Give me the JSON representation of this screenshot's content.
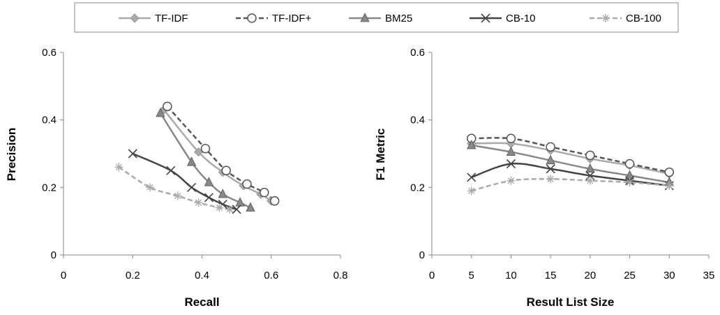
{
  "legend": {
    "entries": [
      "TF-IDF",
      "TF-IDF+",
      "BM25",
      "CB-10",
      "CB-100"
    ],
    "placement": "top"
  },
  "series_style": [
    {
      "name": "TF-IDF",
      "color": "#aaaaaa",
      "dash": "solid",
      "marker": "diamond"
    },
    {
      "name": "TF-IDF+",
      "color": "#555555",
      "dash": "dashed",
      "marker": "open-circle"
    },
    {
      "name": "BM25",
      "color": "#888888",
      "dash": "solid",
      "marker": "triangle"
    },
    {
      "name": "CB-10",
      "color": "#444444",
      "dash": "solid",
      "marker": "x"
    },
    {
      "name": "CB-100",
      "color": "#aaaaaa",
      "dash": "dashed",
      "marker": "asterisk"
    }
  ],
  "chart_data": [
    {
      "type": "line",
      "title": "",
      "xlabel": "Recall",
      "ylabel": "Precision",
      "xlim": [
        0,
        0.8
      ],
      "ylim": [
        0,
        0.6
      ],
      "xticks": [
        "0",
        "0.2",
        "0.4",
        "0.6",
        "0.8"
      ],
      "yticks": [
        "0",
        "0.2",
        "0.4",
        "0.6"
      ],
      "grid": false,
      "series": [
        {
          "name": "TF-IDF",
          "x": [
            0.29,
            0.39,
            0.46,
            0.52,
            0.57,
            0.6
          ],
          "y": [
            0.43,
            0.305,
            0.245,
            0.205,
            0.18,
            0.16
          ]
        },
        {
          "name": "TF-IDF+",
          "x": [
            0.3,
            0.41,
            0.47,
            0.53,
            0.58,
            0.61
          ],
          "y": [
            0.44,
            0.315,
            0.25,
            0.21,
            0.185,
            0.16
          ]
        },
        {
          "name": "BM25",
          "x": [
            0.28,
            0.37,
            0.42,
            0.46,
            0.51,
            0.54
          ],
          "y": [
            0.42,
            0.275,
            0.215,
            0.18,
            0.155,
            0.14
          ]
        },
        {
          "name": "CB-10",
          "x": [
            0.2,
            0.31,
            0.37,
            0.42,
            0.46,
            0.5
          ],
          "y": [
            0.3,
            0.25,
            0.2,
            0.17,
            0.15,
            0.135
          ]
        },
        {
          "name": "CB-100",
          "x": [
            0.16,
            0.25,
            0.33,
            0.39,
            0.45,
            0.48
          ],
          "y": [
            0.26,
            0.2,
            0.175,
            0.155,
            0.14,
            0.135
          ]
        }
      ]
    },
    {
      "type": "line",
      "title": "",
      "xlabel": "Result List Size",
      "ylabel": "F1 Metric",
      "xlim": [
        0,
        35
      ],
      "ylim": [
        0,
        0.6
      ],
      "xticks": [
        "0",
        "5",
        "10",
        "15",
        "20",
        "25",
        "30",
        "35"
      ],
      "yticks": [
        "0",
        "0.2",
        "0.4",
        "0.6"
      ],
      "grid": false,
      "series": [
        {
          "name": "TF-IDF",
          "x": [
            5,
            10,
            15,
            20,
            25,
            30
          ],
          "y": [
            0.33,
            0.33,
            0.31,
            0.285,
            0.265,
            0.24
          ]
        },
        {
          "name": "TF-IDF+",
          "x": [
            5,
            10,
            15,
            20,
            25,
            30
          ],
          "y": [
            0.345,
            0.345,
            0.32,
            0.295,
            0.27,
            0.245
          ]
        },
        {
          "name": "BM25",
          "x": [
            5,
            10,
            15,
            20,
            25,
            30
          ],
          "y": [
            0.325,
            0.305,
            0.28,
            0.255,
            0.235,
            0.215
          ]
        },
        {
          "name": "CB-10",
          "x": [
            5,
            10,
            15,
            20,
            25,
            30
          ],
          "y": [
            0.23,
            0.27,
            0.255,
            0.235,
            0.22,
            0.205
          ]
        },
        {
          "name": "CB-100",
          "x": [
            5,
            10,
            15,
            20,
            25,
            30
          ],
          "y": [
            0.19,
            0.22,
            0.225,
            0.22,
            0.215,
            0.205
          ]
        }
      ]
    }
  ]
}
